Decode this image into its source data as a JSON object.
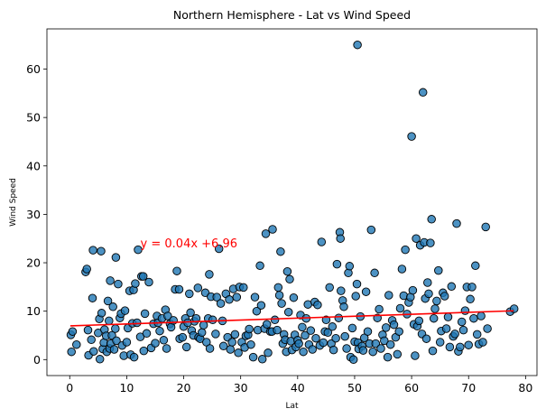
{
  "chart_data": {
    "type": "scatter",
    "title": "Northern Hemisphere - Lat vs Wind Speed",
    "xlabel": "Lat",
    "ylabel": "Wind Speed",
    "xlim": [
      -4,
      82
    ],
    "ylim": [
      -3.3,
      68.3
    ],
    "xticks": [
      0,
      10,
      20,
      30,
      40,
      50,
      60,
      70,
      80
    ],
    "yticks": [
      0,
      10,
      20,
      30,
      40,
      50,
      60
    ],
    "grid": false,
    "marker_color": "#1f77b4",
    "marker_edge": "#000000",
    "regression": {
      "slope": 0.04,
      "intercept": 6.96,
      "x_range": [
        0.1,
        77.9
      ],
      "color": "#ff0000"
    },
    "annotation": {
      "text": "y = 0.04x +6.96",
      "x": 12.4,
      "y": 23.2
    },
    "points": [
      [
        0.2,
        5.1
      ],
      [
        0.3,
        1.6
      ],
      [
        0.5,
        5.8
      ],
      [
        1.2,
        3.1
      ],
      [
        2.8,
        18.1
      ],
      [
        3.0,
        18.7
      ],
      [
        3.2,
        6.1
      ],
      [
        3.3,
        0.9
      ],
      [
        3.8,
        4.1
      ],
      [
        4.0,
        12.7
      ],
      [
        4.1,
        22.6
      ],
      [
        4.2,
        1.7
      ],
      [
        5.0,
        5.5
      ],
      [
        5.2,
        8.4
      ],
      [
        5.3,
        0.1
      ],
      [
        5.5,
        22.4
      ],
      [
        5.6,
        9.6
      ],
      [
        5.8,
        2.2
      ],
      [
        6.0,
        3.5
      ],
      [
        6.1,
        6.2
      ],
      [
        6.4,
        4.9
      ],
      [
        6.5,
        1.6
      ],
      [
        6.7,
        12.1
      ],
      [
        6.9,
        8.0
      ],
      [
        7.0,
        2.3
      ],
      [
        7.1,
        16.3
      ],
      [
        7.2,
        3.3
      ],
      [
        7.4,
        5.0
      ],
      [
        7.6,
        10.9
      ],
      [
        7.8,
        2.1
      ],
      [
        8.0,
        6.4
      ],
      [
        8.1,
        21.1
      ],
      [
        8.2,
        3.9
      ],
      [
        8.5,
        15.6
      ],
      [
        8.8,
        8.6
      ],
      [
        9.0,
        9.5
      ],
      [
        9.2,
        2.9
      ],
      [
        9.5,
        0.8
      ],
      [
        9.7,
        10.1
      ],
      [
        10.0,
        3.6
      ],
      [
        10.2,
        6.5
      ],
      [
        10.5,
        14.2
      ],
      [
        10.7,
        1.0
      ],
      [
        11.0,
        7.5
      ],
      [
        11.2,
        14.4
      ],
      [
        11.3,
        0.5
      ],
      [
        11.5,
        15.7
      ],
      [
        11.8,
        7.6
      ],
      [
        12.0,
        22.7
      ],
      [
        12.4,
        4.7
      ],
      [
        12.6,
        17.2
      ],
      [
        12.9,
        17.2
      ],
      [
        13.0,
        1.8
      ],
      [
        13.2,
        9.5
      ],
      [
        13.5,
        5.4
      ],
      [
        13.9,
        16.0
      ],
      [
        14.3,
        2.4
      ],
      [
        14.7,
        7.4
      ],
      [
        15.0,
        3.4
      ],
      [
        15.3,
        9.0
      ],
      [
        15.5,
        7.6
      ],
      [
        15.8,
        5.9
      ],
      [
        16.2,
        8.5
      ],
      [
        16.5,
        4.0
      ],
      [
        16.8,
        10.3
      ],
      [
        17.0,
        2.3
      ],
      [
        17.2,
        9.0
      ],
      [
        17.6,
        7.4
      ],
      [
        17.8,
        6.7
      ],
      [
        18.2,
        8.1
      ],
      [
        18.5,
        14.5
      ],
      [
        18.8,
        18.3
      ],
      [
        19.2,
        14.5
      ],
      [
        19.3,
        4.3
      ],
      [
        19.8,
        4.6
      ],
      [
        20.0,
        6.8
      ],
      [
        20.3,
        8.5
      ],
      [
        20.5,
        2.6
      ],
      [
        20.7,
        7.6
      ],
      [
        21.0,
        13.6
      ],
      [
        21.2,
        9.7
      ],
      [
        21.4,
        6.0
      ],
      [
        21.7,
        5.0
      ],
      [
        21.9,
        7.9
      ],
      [
        22.2,
        8.5
      ],
      [
        22.5,
        14.8
      ],
      [
        22.6,
        4.6
      ],
      [
        22.9,
        4.3
      ],
      [
        23.2,
        5.6
      ],
      [
        23.5,
        7.1
      ],
      [
        23.8,
        13.8
      ],
      [
        24.0,
        3.6
      ],
      [
        24.3,
        8.5
      ],
      [
        24.5,
        17.6
      ],
      [
        24.6,
        2.3
      ],
      [
        24.8,
        13.0
      ],
      [
        25.1,
        8.2
      ],
      [
        25.6,
        5.3
      ],
      [
        25.8,
        12.9
      ],
      [
        26.2,
        22.9
      ],
      [
        26.5,
        11.6
      ],
      [
        26.8,
        8.0
      ],
      [
        27.0,
        2.8
      ],
      [
        27.4,
        13.6
      ],
      [
        27.7,
        4.6
      ],
      [
        28.0,
        12.4
      ],
      [
        28.2,
        2.1
      ],
      [
        28.5,
        3.6
      ],
      [
        28.7,
        14.6
      ],
      [
        29.0,
        5.2
      ],
      [
        29.3,
        12.9
      ],
      [
        29.6,
        1.4
      ],
      [
        29.8,
        15.0
      ],
      [
        30.2,
        3.6
      ],
      [
        30.5,
        14.9
      ],
      [
        30.7,
        2.5
      ],
      [
        30.9,
        4.9
      ],
      [
        31.3,
        5.1
      ],
      [
        31.5,
        6.3
      ],
      [
        31.8,
        3.1
      ],
      [
        32.2,
        0.5
      ],
      [
        32.5,
        12.9
      ],
      [
        32.8,
        10.0
      ],
      [
        33.0,
        6.1
      ],
      [
        33.4,
        19.4
      ],
      [
        33.6,
        11.2
      ],
      [
        33.8,
        0.1
      ],
      [
        34.2,
        6.4
      ],
      [
        34.4,
        26.0
      ],
      [
        34.6,
        7.3
      ],
      [
        34.8,
        1.4
      ],
      [
        35.2,
        5.8
      ],
      [
        35.5,
        5.8
      ],
      [
        35.6,
        26.9
      ],
      [
        36.0,
        8.2
      ],
      [
        36.4,
        6.1
      ],
      [
        36.6,
        14.9
      ],
      [
        36.8,
        13.3
      ],
      [
        37.0,
        22.3
      ],
      [
        37.2,
        11.6
      ],
      [
        37.4,
        3.3
      ],
      [
        37.6,
        5.2
      ],
      [
        37.8,
        4.1
      ],
      [
        38.0,
        1.6
      ],
      [
        38.2,
        18.2
      ],
      [
        38.4,
        9.8
      ],
      [
        38.6,
        16.6
      ],
      [
        38.8,
        3.8
      ],
      [
        39.0,
        2.0
      ],
      [
        39.3,
        12.8
      ],
      [
        39.5,
        5.1
      ],
      [
        39.7,
        2.6
      ],
      [
        40.0,
        4.0
      ],
      [
        40.2,
        3.3
      ],
      [
        40.5,
        9.2
      ],
      [
        40.8,
        6.7
      ],
      [
        41.0,
        1.6
      ],
      [
        41.3,
        5.0
      ],
      [
        41.5,
        8.5
      ],
      [
        41.8,
        11.4
      ],
      [
        42.0,
        3.1
      ],
      [
        42.3,
        6.0
      ],
      [
        42.6,
        2.1
      ],
      [
        43.0,
        11.9
      ],
      [
        43.2,
        4.4
      ],
      [
        43.5,
        11.3
      ],
      [
        43.9,
        2.9
      ],
      [
        44.2,
        24.3
      ],
      [
        44.5,
        3.5
      ],
      [
        44.8,
        5.8
      ],
      [
        45.0,
        8.2
      ],
      [
        45.3,
        5.6
      ],
      [
        45.6,
        14.9
      ],
      [
        45.9,
        3.3
      ],
      [
        46.1,
        6.8
      ],
      [
        46.3,
        2.0
      ],
      [
        46.7,
        4.4
      ],
      [
        46.9,
        19.7
      ],
      [
        47.2,
        8.6
      ],
      [
        47.4,
        26.3
      ],
      [
        47.5,
        25.0
      ],
      [
        47.6,
        14.2
      ],
      [
        47.9,
        12.2
      ],
      [
        48.1,
        10.9
      ],
      [
        48.3,
        4.8
      ],
      [
        48.6,
        2.3
      ],
      [
        48.9,
        17.9
      ],
      [
        49.1,
        19.3
      ],
      [
        49.3,
        0.5
      ],
      [
        49.6,
        6.5
      ],
      [
        49.8,
        0.0
      ],
      [
        50.0,
        3.7
      ],
      [
        50.2,
        13.1
      ],
      [
        50.4,
        15.6
      ],
      [
        50.5,
        65.0
      ],
      [
        50.6,
        3.5
      ],
      [
        50.7,
        2.2
      ],
      [
        51.0,
        8.9
      ],
      [
        51.3,
        2.8
      ],
      [
        51.5,
        1.9
      ],
      [
        51.7,
        4.5
      ],
      [
        52.0,
        14.0
      ],
      [
        52.3,
        5.8
      ],
      [
        52.6,
        3.3
      ],
      [
        52.9,
        26.8
      ],
      [
        53.2,
        1.6
      ],
      [
        53.5,
        17.9
      ],
      [
        53.7,
        3.3
      ],
      [
        54.0,
        8.6
      ],
      [
        54.3,
        10.4
      ],
      [
        54.6,
        2.3
      ],
      [
        54.9,
        5.1
      ],
      [
        55.2,
        3.9
      ],
      [
        55.5,
        6.6
      ],
      [
        55.8,
        0.5
      ],
      [
        56.0,
        13.3
      ],
      [
        56.3,
        3.1
      ],
      [
        56.6,
        8.1
      ],
      [
        56.9,
        7.2
      ],
      [
        57.2,
        4.6
      ],
      [
        57.5,
        1.1
      ],
      [
        57.8,
        5.8
      ],
      [
        58.0,
        10.6
      ],
      [
        58.3,
        18.7
      ],
      [
        58.6,
        13.2
      ],
      [
        58.9,
        22.7
      ],
      [
        59.2,
        9.4
      ],
      [
        59.5,
        11.8
      ],
      [
        59.8,
        12.9
      ],
      [
        60.0,
        46.1
      ],
      [
        60.2,
        14.3
      ],
      [
        60.4,
        7.3
      ],
      [
        60.6,
        0.8
      ],
      [
        60.8,
        25.0
      ],
      [
        61.0,
        6.9
      ],
      [
        61.3,
        8.0
      ],
      [
        61.5,
        23.6
      ],
      [
        61.8,
        5.3
      ],
      [
        62.0,
        55.2
      ],
      [
        62.2,
        24.2
      ],
      [
        62.4,
        12.6
      ],
      [
        62.6,
        4.3
      ],
      [
        62.8,
        15.9
      ],
      [
        63.0,
        13.6
      ],
      [
        63.3,
        24.1
      ],
      [
        63.5,
        29.0
      ],
      [
        63.7,
        1.8
      ],
      [
        63.9,
        8.5
      ],
      [
        64.1,
        10.5
      ],
      [
        64.4,
        12.1
      ],
      [
        64.7,
        18.4
      ],
      [
        65.0,
        3.6
      ],
      [
        65.2,
        5.9
      ],
      [
        65.5,
        13.8
      ],
      [
        65.8,
        13.1
      ],
      [
        66.1,
        6.4
      ],
      [
        66.4,
        8.8
      ],
      [
        66.7,
        2.6
      ],
      [
        67.0,
        15.1
      ],
      [
        67.3,
        4.8
      ],
      [
        67.6,
        5.3
      ],
      [
        67.9,
        28.1
      ],
      [
        68.2,
        1.7
      ],
      [
        68.5,
        2.6
      ],
      [
        68.8,
        7.8
      ],
      [
        69.1,
        6.1
      ],
      [
        69.4,
        10.1
      ],
      [
        69.7,
        15.0
      ],
      [
        70.0,
        3.0
      ],
      [
        70.3,
        12.5
      ],
      [
        70.6,
        15.0
      ],
      [
        70.9,
        8.5
      ],
      [
        71.2,
        19.4
      ],
      [
        71.5,
        5.2
      ],
      [
        71.8,
        3.2
      ],
      [
        72.2,
        9.0
      ],
      [
        72.5,
        3.6
      ],
      [
        73.0,
        27.4
      ],
      [
        73.3,
        6.4
      ],
      [
        77.3,
        9.9
      ],
      [
        78.0,
        10.5
      ]
    ]
  }
}
